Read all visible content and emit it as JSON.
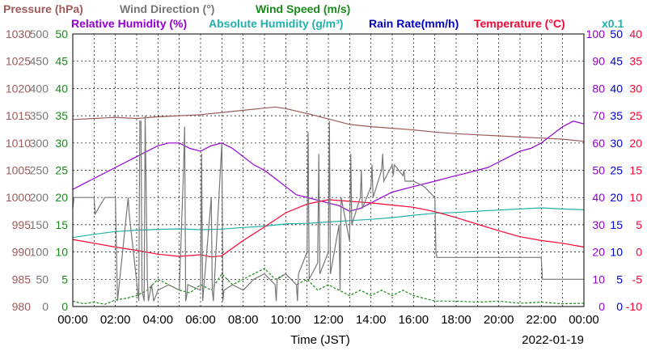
{
  "chart_data": {
    "type": "line",
    "titles_line1": [
      {
        "key": "pressure",
        "text": "Pressure (hPa)",
        "color": "#9c5a5a"
      },
      {
        "key": "wind_dir",
        "text": "Wind Direction (°)",
        "color": "#777777"
      },
      {
        "key": "wind_speed",
        "text": "Wind Speed (m/s)",
        "color": "#1a8a1a"
      }
    ],
    "titles_line2": [
      {
        "key": "rel_hum",
        "text": "Relative Humidity (%)",
        "color": "#9400d3"
      },
      {
        "key": "abs_hum",
        "text": "Absolute Humidity (g/m³)",
        "color": "#20b2aa"
      },
      {
        "key": "rain",
        "text": "Rain Rate(mm/h)",
        "color": "#0000cd"
      },
      {
        "key": "temp",
        "text": "Temperature (°C)",
        "color": "#ff0033"
      },
      {
        "key": "x01",
        "text": "x0.1",
        "color": "#20b2aa"
      }
    ],
    "xlabel": "Time (JST)",
    "date": "2022-01-19",
    "x_ticks": [
      "00:00",
      "02:00",
      "04:00",
      "06:00",
      "08:00",
      "10:00",
      "12:00",
      "14:00",
      "16:00",
      "18:00",
      "20:00",
      "22:00",
      "00:00"
    ],
    "x_range_hours": [
      0,
      24
    ],
    "left_axes": [
      {
        "key": "pressure",
        "color": "#9c5a5a",
        "ticks": [
          "980",
          "985",
          "990",
          "995",
          "1000",
          "1005",
          "1010",
          "1015",
          "1020",
          "1025",
          "1030"
        ]
      },
      {
        "key": "wind_dir",
        "color": "#777777",
        "ticks": [
          "0",
          "50",
          "100",
          "150",
          "200",
          "250",
          "300",
          "350",
          "400",
          "450",
          "500"
        ]
      },
      {
        "key": "wind_speed",
        "color": "#1a8a1a",
        "ticks": [
          "0",
          "5",
          "10",
          "15",
          "20",
          "25",
          "30",
          "35",
          "40",
          "45",
          "50"
        ]
      }
    ],
    "right_axes": [
      {
        "key": "rel_hum",
        "color": "#9400d3",
        "ticks": [
          "0",
          "10",
          "20",
          "30",
          "40",
          "50",
          "60",
          "70",
          "80",
          "90",
          "100"
        ]
      },
      {
        "key": "rain",
        "color": "#0000cd",
        "ticks": [
          "0",
          "5",
          "10",
          "15",
          "20",
          "25",
          "30",
          "35",
          "40",
          "45",
          "50"
        ]
      },
      {
        "key": "temp",
        "color": "#ff0033",
        "ticks": [
          "-10",
          "-5",
          "0",
          "5",
          "10",
          "15",
          "20",
          "25",
          "30",
          "35",
          "40"
        ]
      }
    ],
    "series": [
      {
        "name": "Pressure (hPa)",
        "key": "pressure",
        "color": "#9c5a5a",
        "range": [
          980,
          1030
        ],
        "x": [
          0,
          1,
          2,
          3,
          4,
          5,
          6,
          7,
          8,
          9,
          9.5,
          10,
          11,
          12,
          13,
          14,
          15,
          16,
          17,
          18,
          19,
          20,
          21,
          22,
          23,
          24
        ],
        "y": [
          1014.3,
          1014.5,
          1014.7,
          1014.5,
          1014.8,
          1015.0,
          1015.2,
          1015.6,
          1016.0,
          1016.4,
          1016.6,
          1016.3,
          1015.4,
          1014.4,
          1013.4,
          1013.0,
          1012.7,
          1012.4,
          1012.0,
          1011.7,
          1011.5,
          1011.3,
          1011.1,
          1010.9,
          1010.7,
          1010.3
        ]
      },
      {
        "name": "Relative Humidity (%)",
        "key": "rel_hum",
        "color": "#9400d3",
        "range": [
          0,
          100
        ],
        "x": [
          0,
          0.5,
          1,
          1.5,
          2,
          2.5,
          3,
          3.5,
          4,
          4.5,
          5,
          5.5,
          6,
          6.5,
          7,
          7.5,
          8,
          8.5,
          9,
          9.5,
          10,
          10.5,
          11,
          11.5,
          12,
          12.5,
          13,
          13.5,
          14,
          14.5,
          15,
          15.5,
          16,
          16.5,
          17,
          17.5,
          18,
          18.5,
          19,
          19.5,
          20,
          20.5,
          21,
          21.5,
          22,
          22.5,
          23,
          23.5,
          24
        ],
        "y": [
          43,
          45,
          47,
          49,
          51,
          53,
          55,
          57,
          59,
          60,
          60,
          58,
          57,
          59,
          60,
          58,
          55,
          52,
          50,
          47,
          44,
          41,
          40,
          39,
          38,
          37,
          35,
          36,
          38,
          40,
          42,
          43,
          44,
          45,
          46,
          47,
          48,
          49,
          50,
          51,
          53,
          55,
          57,
          58,
          60,
          63,
          66,
          68,
          67
        ]
      },
      {
        "name": "Absolute Humidity (g/m³)",
        "key": "abs_hum",
        "color": "#20b2aa",
        "range": [
          0,
          100
        ],
        "x": [
          0,
          1,
          2,
          3,
          4,
          5,
          6,
          7,
          8,
          9,
          10,
          11,
          12,
          13,
          14,
          15,
          16,
          17,
          18,
          19,
          20,
          21,
          22,
          23,
          24
        ],
        "y": [
          25.3,
          26.5,
          27.5,
          28.0,
          28.3,
          28.5,
          28.2,
          28.4,
          29.0,
          29.5,
          30.3,
          30.5,
          31.0,
          31.5,
          32.0,
          32.6,
          33.5,
          34.2,
          34.5,
          35.0,
          35.4,
          35.8,
          36.2,
          35.8,
          35.5
        ]
      },
      {
        "name": "Temperature (°C)",
        "key": "temp",
        "color": "#ff0033",
        "range": [
          -10,
          40
        ],
        "x": [
          0,
          1,
          2,
          3,
          4,
          5,
          6,
          6.5,
          7,
          8,
          9,
          10,
          11,
          12,
          13,
          14,
          15,
          16,
          17,
          18,
          19,
          20,
          21,
          22,
          23,
          24
        ],
        "y": [
          2.3,
          1.6,
          0.9,
          0.3,
          -0.4,
          -0.8,
          -0.5,
          -0.9,
          -0.7,
          2.1,
          4.6,
          7.2,
          8.8,
          9.6,
          9.3,
          9.0,
          8.6,
          8.2,
          7.4,
          6.3,
          5.1,
          3.9,
          2.8,
          2.1,
          1.6,
          0.9
        ]
      },
      {
        "name": "Wind Speed (m/s)",
        "key": "wind_speed",
        "color": "#1a8a1a",
        "range": [
          0,
          50
        ],
        "dashed": true,
        "x": [
          0,
          0.5,
          1,
          1.5,
          2,
          2.5,
          3,
          3.5,
          4,
          4.5,
          5,
          5.5,
          6,
          6.5,
          7,
          7.5,
          8,
          8.5,
          9,
          9.5,
          10,
          10.5,
          11,
          11.5,
          12,
          12.5,
          13,
          13.5,
          14,
          14.5,
          15,
          15.5,
          16,
          16.5,
          17,
          18,
          19,
          20,
          21,
          22,
          23,
          24
        ],
        "y": [
          1,
          0.5,
          0.8,
          0.4,
          1.2,
          1.5,
          2,
          3,
          5,
          4,
          3,
          2.5,
          4,
          3,
          6,
          4,
          5,
          6,
          7,
          5,
          6,
          4,
          5,
          3,
          4,
          3,
          2,
          3,
          2,
          3,
          2,
          3,
          2,
          1.5,
          1,
          1,
          0.8,
          1,
          0.6,
          0.8,
          0.5,
          0.6
        ]
      },
      {
        "name": "Wind Direction (°)",
        "key": "wind_dir",
        "color": "#777777",
        "range": [
          0,
          500
        ],
        "x": [
          0,
          0.05,
          0.5,
          1,
          1.05,
          1.5,
          2,
          2.1,
          2.6,
          2.65,
          3.1,
          3.15,
          3.2,
          3.25,
          3.35,
          3.4,
          3.5,
          3.55,
          3.7,
          3.8,
          4,
          4.5,
          5,
          5.2,
          5.25,
          5.3,
          5.35,
          5.4,
          6,
          6.05,
          6.1,
          6.5,
          6.55,
          6.6,
          7,
          7.05,
          7.1,
          7.5,
          8,
          8.5,
          9,
          9.5,
          9.55,
          9.6,
          10,
          10.5,
          10.55,
          10.6,
          11,
          11.05,
          11.1,
          11.5,
          11.55,
          11.6,
          12,
          12.05,
          12.1,
          12.5,
          12.55,
          12.6,
          13,
          13.05,
          13.1,
          13.5,
          13.55,
          13.6,
          14,
          14.05,
          14.1,
          14.5,
          14.55,
          14.6,
          15,
          15.05,
          15.1,
          15.5,
          15.55,
          15.6,
          16,
          16.5,
          17,
          17.05,
          17.1,
          18,
          19,
          20,
          21,
          22,
          22.05,
          23,
          24
        ],
        "y": [
          180,
          200,
          200,
          200,
          170,
          200,
          200,
          10,
          200,
          170,
          10,
          340,
          340,
          30,
          10,
          350,
          50,
          10,
          40,
          10,
          30,
          40,
          30,
          250,
          330,
          10,
          20,
          40,
          30,
          280,
          10,
          200,
          30,
          10,
          300,
          10,
          30,
          40,
          30,
          50,
          60,
          40,
          10,
          50,
          60,
          40,
          10,
          60,
          100,
          320,
          50,
          80,
          280,
          60,
          100,
          340,
          60,
          150,
          30,
          200,
          120,
          280,
          150,
          200,
          250,
          180,
          220,
          260,
          200,
          250,
          280,
          230,
          260,
          240,
          260,
          240,
          250,
          230,
          230,
          220,
          200,
          100,
          90,
          90,
          90,
          90,
          90,
          90,
          50,
          50,
          50
        ]
      }
    ]
  }
}
